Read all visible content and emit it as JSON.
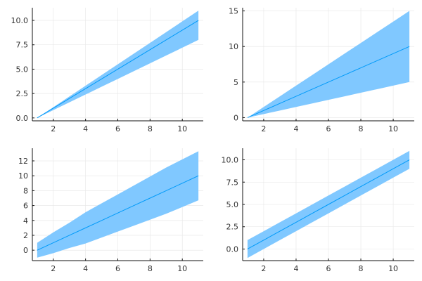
{
  "chart_data": [
    {
      "type": "area",
      "panel": "top-left",
      "title": "",
      "xlabel": "",
      "ylabel": "",
      "grid": true,
      "legend": "none",
      "band_color": "#80c8ff",
      "line_color": "#009af9",
      "xlim": [
        0.7,
        11.3
      ],
      "ylim": [
        -0.3,
        11.3
      ],
      "xticks": [
        2,
        4,
        6,
        8,
        10
      ],
      "xtick_labels": [
        "2",
        "4",
        "6",
        "8",
        "10"
      ],
      "yticks": [
        0,
        2.5,
        5,
        7.5,
        10
      ],
      "ytick_labels": [
        "0.0",
        "2.5",
        "5.0",
        "7.5",
        "10.0"
      ],
      "x": [
        1,
        2,
        3,
        4,
        5,
        6,
        7,
        8,
        9,
        10,
        11
      ],
      "y": [
        0,
        1,
        2,
        3,
        4,
        5,
        6,
        7,
        8,
        9,
        10
      ],
      "lower": [
        0,
        0.8,
        1.6,
        2.4,
        3.2,
        4.0,
        4.8,
        5.6,
        6.4,
        7.2,
        8.0
      ],
      "upper": [
        0,
        1.1,
        2.2,
        3.3,
        4.4,
        5.5,
        6.6,
        7.7,
        8.8,
        9.9,
        11.0
      ]
    },
    {
      "type": "area",
      "panel": "top-right",
      "title": "",
      "xlabel": "",
      "ylabel": "",
      "grid": true,
      "legend": "none",
      "band_color": "#80c8ff",
      "line_color": "#009af9",
      "xlim": [
        0.7,
        11.3
      ],
      "ylim": [
        -0.45,
        15.45
      ],
      "xticks": [
        2,
        4,
        6,
        8,
        10
      ],
      "xtick_labels": [
        "2",
        "4",
        "6",
        "8",
        "10"
      ],
      "yticks": [
        0,
        5,
        10,
        15
      ],
      "ytick_labels": [
        "0",
        "5",
        "10",
        "15"
      ],
      "x": [
        1,
        2,
        3,
        4,
        5,
        6,
        7,
        8,
        9,
        10,
        11
      ],
      "y": [
        0,
        1,
        2,
        3,
        4,
        5,
        6,
        7,
        8,
        9,
        10
      ],
      "lower": [
        0,
        0.5,
        1.0,
        1.5,
        2.0,
        2.5,
        3.0,
        3.5,
        4.0,
        4.5,
        5.0
      ],
      "upper": [
        0,
        1.5,
        3.0,
        4.5,
        6.0,
        7.5,
        9.0,
        10.5,
        12.0,
        13.5,
        15.0
      ]
    },
    {
      "type": "area",
      "panel": "bottom-left",
      "title": "",
      "xlabel": "",
      "ylabel": "",
      "grid": true,
      "legend": "none",
      "band_color": "#80c8ff",
      "line_color": "#009af9",
      "xlim": [
        0.7,
        11.3
      ],
      "ylim": [
        -1.4,
        13.7
      ],
      "xticks": [
        2,
        4,
        6,
        8,
        10
      ],
      "xtick_labels": [
        "2",
        "4",
        "6",
        "8",
        "10"
      ],
      "yticks": [
        0,
        2,
        4,
        6,
        8,
        10,
        12
      ],
      "ytick_labels": [
        "0",
        "2",
        "4",
        "6",
        "8",
        "10",
        "12"
      ],
      "x": [
        1,
        2,
        3,
        4,
        5,
        6,
        7,
        8,
        9,
        10,
        11
      ],
      "y": [
        0,
        1,
        2,
        3,
        4,
        5,
        6,
        7,
        8,
        9,
        10
      ],
      "lower": [
        -1.0,
        -0.4,
        0.3,
        0.9,
        1.7,
        2.5,
        3.3,
        4.1,
        4.9,
        5.8,
        6.7
      ],
      "upper": [
        1.0,
        2.4,
        3.7,
        5.1,
        6.3,
        7.5,
        8.7,
        9.9,
        11.1,
        12.2,
        13.3
      ]
    },
    {
      "type": "area",
      "panel": "bottom-right",
      "title": "",
      "xlabel": "",
      "ylabel": "",
      "grid": true,
      "legend": "none",
      "band_color": "#80c8ff",
      "line_color": "#009af9",
      "xlim": [
        0.7,
        11.3
      ],
      "ylim": [
        -1.3,
        11.3
      ],
      "xticks": [
        2,
        4,
        6,
        8,
        10
      ],
      "xtick_labels": [
        "2",
        "4",
        "6",
        "8",
        "10"
      ],
      "yticks": [
        0,
        2.5,
        5,
        7.5,
        10
      ],
      "ytick_labels": [
        "0.0",
        "2.5",
        "5.0",
        "7.5",
        "10.0"
      ],
      "x": [
        1,
        2,
        3,
        4,
        5,
        6,
        7,
        8,
        9,
        10,
        11
      ],
      "y": [
        0,
        1,
        2,
        3,
        4,
        5,
        6,
        7,
        8,
        9,
        10
      ],
      "lower": [
        -1,
        0,
        1,
        2,
        3,
        4,
        5,
        6,
        7,
        8,
        9
      ],
      "upper": [
        1,
        2,
        3,
        4,
        5,
        6,
        7,
        8,
        9,
        10,
        11
      ]
    }
  ]
}
